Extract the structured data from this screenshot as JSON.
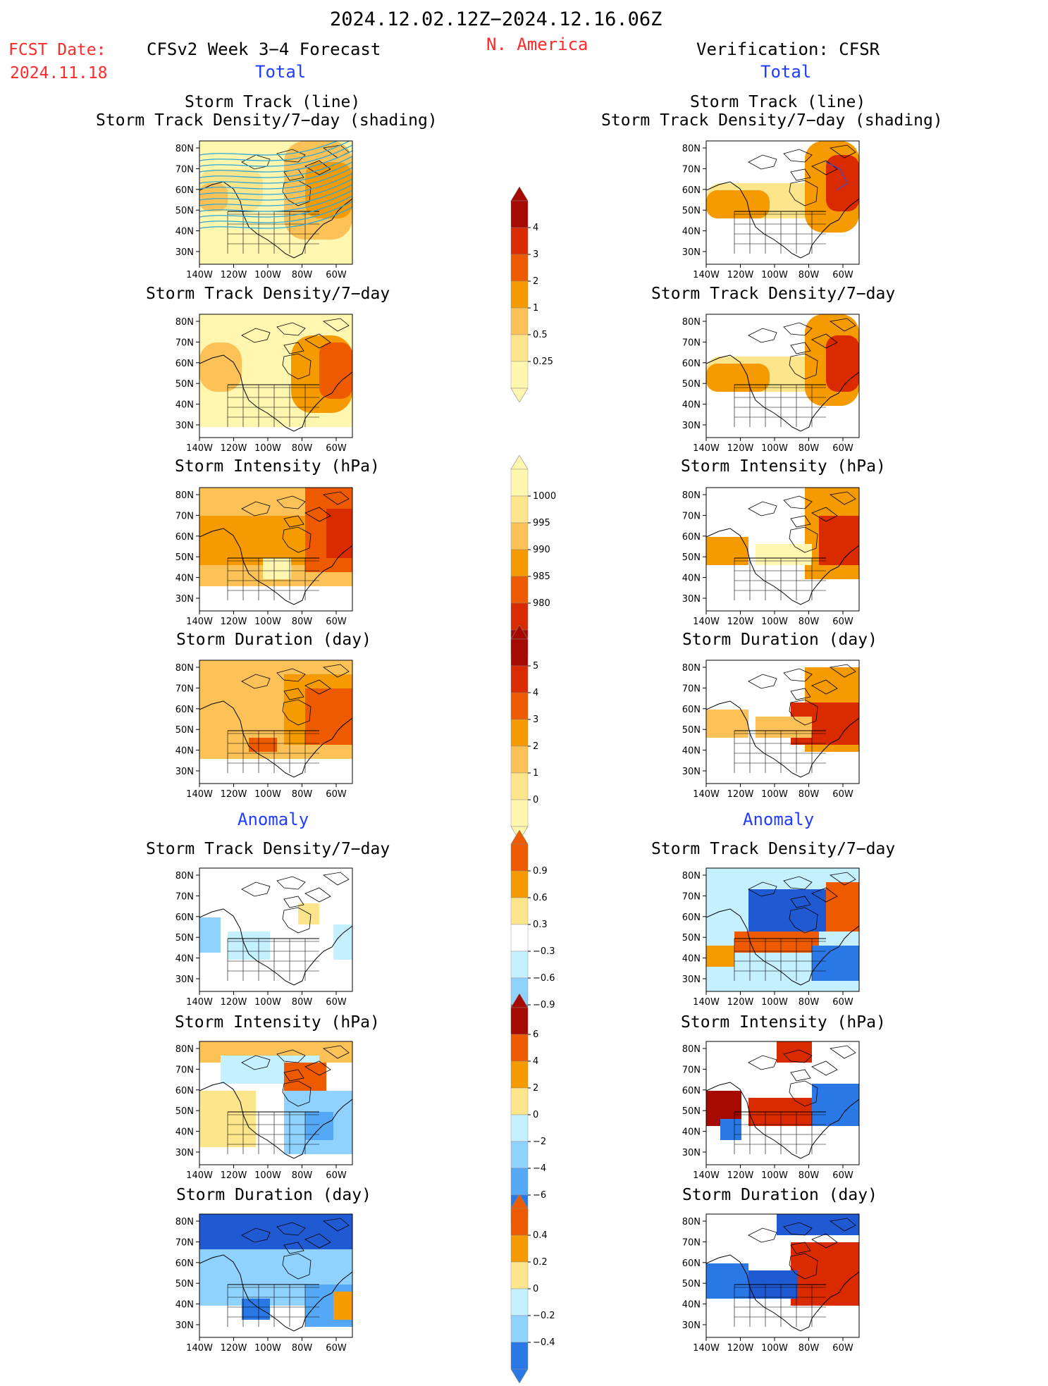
{
  "header": {
    "date_range": "2024.12.02.12Z−2024.12.16.06Z",
    "fcst_label": "FCST Date:",
    "fcst_date": "2024.11.18",
    "model": "CFSv2 Week 3−4 Forecast",
    "region": "N. America",
    "verification": "Verification: CFSR"
  },
  "sections": {
    "total_left": "Total",
    "total_right": "Total",
    "anomaly_left": "Anomaly",
    "anomaly_right": "Anomaly"
  },
  "panel_titles": {
    "st_line": "Storm Track (line)",
    "st_shading": "Storm Track Density/7−day (shading)",
    "density": "Storm Track Density/7−day",
    "intensity": "Storm Intensity (hPa)",
    "duration": "Storm Duration (day)"
  },
  "axes": {
    "lat": [
      "80N",
      "70N",
      "60N",
      "50N",
      "40N",
      "30N"
    ],
    "lon": [
      "140W",
      "120W",
      "100W",
      "80W",
      "60W"
    ]
  },
  "colorbars": {
    "density_total": [
      "4",
      "3",
      "2",
      "1",
      "0.5",
      "0.25"
    ],
    "intensity_total": [
      "1000",
      "995",
      "990",
      "985",
      "980"
    ],
    "duration_total": [
      "5",
      "4",
      "3",
      "2",
      "1",
      "0"
    ],
    "density_anom": [
      "0.9",
      "0.6",
      "0.3",
      "−0.3",
      "−0.6",
      "−0.9"
    ],
    "intensity_anom": [
      "6",
      "4",
      "2",
      "0",
      "−2",
      "−4",
      "−6"
    ],
    "duration_anom": [
      "0.4",
      "0.2",
      "0",
      "−0.2",
      "−0.4"
    ]
  },
  "colors": {
    "warm": [
      "#fff6b0",
      "#fde58c",
      "#fcc257",
      "#f59a00",
      "#ee5a00",
      "#d92a00",
      "#a50a00"
    ],
    "cool": [
      "#c4f0ff",
      "#8fd2ff",
      "#55a8f5",
      "#2a78e6",
      "#1f5ad2"
    ],
    "track_line": "#30a8d8",
    "red_text": "#ff2a2a",
    "blue_text": "#1f3cff"
  }
}
